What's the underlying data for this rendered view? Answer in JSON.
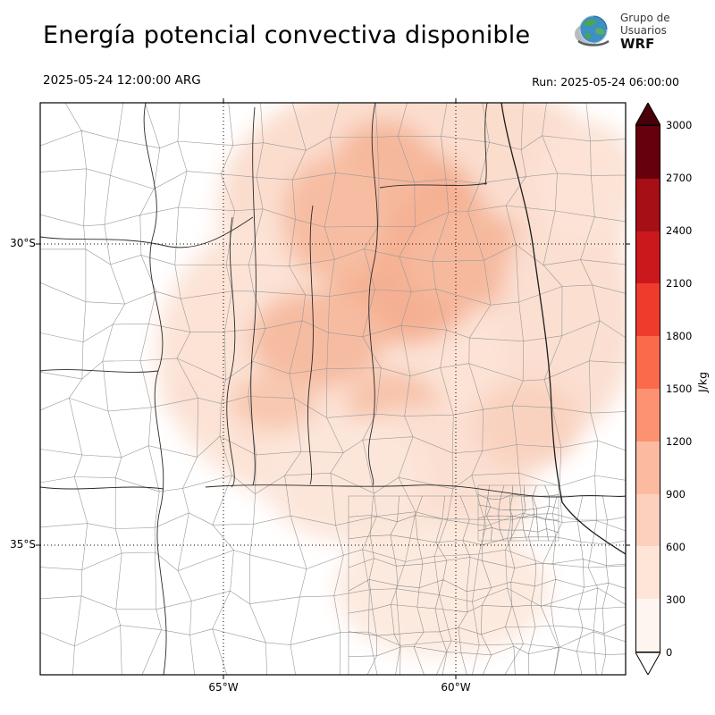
{
  "header": {
    "title": "Energía potencial convectiva disponible",
    "logo": {
      "org_line1": "Grupo de",
      "org_line2": "Usuarios",
      "org_line3": "WRF"
    }
  },
  "times": {
    "valid": "2025-05-24 12:00:00 ARG",
    "run": "Run: 2025-05-24 06:00:00"
  },
  "map": {
    "lat_labels": [
      "30°S",
      "35°S"
    ],
    "lon_labels": [
      "65°W",
      "60°W"
    ]
  },
  "colorbar": {
    "unit": "J/kg",
    "ticks": [
      "3000",
      "2700",
      "2400",
      "2100",
      "1800",
      "1500",
      "1200",
      "900",
      "600",
      "300",
      "0"
    ],
    "colors_top_to_bottom": [
      "#67000d",
      "#a50f15",
      "#cb181d",
      "#ef3b2c",
      "#fb6a4a",
      "#fc9272",
      "#fcbba1",
      "#fcd0bc",
      "#fee5d8",
      "#fff5f0"
    ],
    "arrow_top_color": "#4a0009",
    "arrow_bottom_color": "#ffffff"
  },
  "chart_data": {
    "type": "heatmap",
    "title": "Energía potencial convectiva disponible",
    "colorbar_unit": "J/kg",
    "colorbar_ticks": [
      0,
      300,
      600,
      900,
      1200,
      1500,
      1800,
      2100,
      2400,
      2700,
      3000
    ],
    "colorbar_range": [
      0,
      3000
    ],
    "lat_gridlines": [
      "30°S",
      "35°S"
    ],
    "lon_gridlines": [
      "65°W",
      "60°W"
    ],
    "valid_time": "2025-05-24 12:00:00 ARG",
    "run_time": "Run: 2025-05-24 06:00:00",
    "observed_values_summary": "Light-to-moderate CAPE shading (roughly 0-900 J/kg) over north-central region of the map; white (near 0) in west and far southeast"
  }
}
